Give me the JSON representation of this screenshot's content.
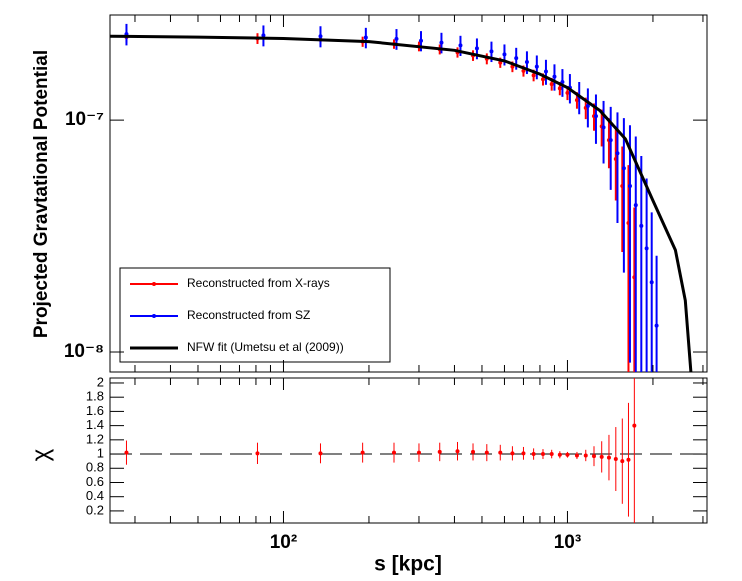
{
  "chart_data": [
    {
      "type": "errorbar",
      "ylabel": "Projected Gravtational Potential",
      "log_x": true,
      "log_y": true,
      "xlim": [
        24.5,
        3100
      ],
      "ylim": [
        8.2e-09,
        2.84e-07
      ],
      "yticks": [
        {
          "value": 1e-08,
          "label": "10⁻⁸"
        },
        {
          "value": 1e-07,
          "label": "10⁻⁷"
        }
      ],
      "legend": "bottom-left",
      "series": [
        {
          "name": "Reconstructed from X-rays",
          "color": "#ff0000",
          "x": [
            28,
            81,
            135,
            190,
            245,
            300,
            355,
            410,
            465,
            520,
            580,
            640,
            700,
            760,
            820,
            880,
            940,
            1000,
            1080,
            1160,
            1240,
            1320,
            1400,
            1480,
            1560,
            1640,
            1720
          ],
          "values": [
            2.28e-07,
            2.25e-07,
            2.22e-07,
            2.18e-07,
            2.13e-07,
            2.08e-07,
            2.02e-07,
            1.96e-07,
            1.9e-07,
            1.84e-07,
            1.77e-07,
            1.7e-07,
            1.63e-07,
            1.56e-07,
            1.5e-07,
            1.43e-07,
            1.37e-07,
            1.31e-07,
            1.22e-07,
            1.13e-07,
            1.04e-07,
            9.4e-08,
            8.2e-08,
            6.8e-08,
            5.2e-08,
            3.6e-08,
            2.1e-08
          ],
          "errors": [
            1.2e-08,
            1.2e-08,
            1.1e-08,
            1.1e-08,
            1e-08,
            1e-08,
            1e-08,
            1e-08,
            1e-08,
            1e-08,
            9e-09,
            9e-09,
            9e-09,
            9e-09,
            9e-09,
            9e-09,
            9e-09,
            9e-09,
            1e-08,
            1.2e-08,
            1.4e-08,
            1.7e-08,
            2e-08,
            2.3e-08,
            2.5e-08,
            2.8e-08,
            2.1e-08
          ]
        },
        {
          "name": "Reconstructed from SZ",
          "color": "#0000ff",
          "x": [
            28,
            85,
            135,
            195,
            250,
            305,
            360,
            420,
            480,
            540,
            600,
            660,
            720,
            780,
            840,
            900,
            960,
            1020,
            1100,
            1180,
            1260,
            1340,
            1420,
            1500,
            1580,
            1660,
            1740,
            1820,
            1900,
            1980,
            2060
          ],
          "values": [
            2.35e-07,
            2.32e-07,
            2.3e-07,
            2.27e-07,
            2.24e-07,
            2.2e-07,
            2.16e-07,
            2.1e-07,
            2.04e-07,
            1.98e-07,
            1.92e-07,
            1.85e-07,
            1.78e-07,
            1.7e-07,
            1.62e-07,
            1.54e-07,
            1.46e-07,
            1.38e-07,
            1.26e-07,
            1.15e-07,
            1.04e-07,
            9.3e-08,
            8.2e-08,
            7.2e-08,
            6.2e-08,
            5.2e-08,
            4.3e-08,
            3.5e-08,
            2.8e-08,
            2e-08,
            1.3e-08
          ],
          "errors": [
            2.5e-08,
            2.4e-08,
            2.4e-08,
            2.3e-08,
            2.3e-08,
            2.2e-08,
            2.2e-08,
            2.1e-08,
            2.1e-08,
            2e-08,
            2e-08,
            2e-08,
            2e-08,
            2e-08,
            2e-08,
            2e-08,
            2e-08,
            2e-08,
            2e-08,
            2.2e-08,
            2.5e-08,
            2.8e-08,
            3.2e-08,
            3.6e-08,
            4e-08,
            4.3e-08,
            4.2e-08,
            3.5e-08,
            2.8e-08,
            2e-08,
            1.3e-08
          ]
        },
        {
          "name": "NFW fit (Umetsu et al (2009))",
          "color": "#000000",
          "x": [
            24.5,
            50,
            100,
            200,
            400,
            600,
            800,
            1000,
            1300,
            1600,
            2000,
            2400,
            2600,
            2720
          ],
          "values": [
            2.3e-07,
            2.28e-07,
            2.25e-07,
            2.18e-07,
            2e-07,
            1.8e-07,
            1.58e-07,
            1.38e-07,
            1.1e-07,
            8.3e-08,
            4.5e-08,
            2.75e-08,
            1.67e-08,
            8.2e-09
          ]
        }
      ]
    },
    {
      "type": "errorbar",
      "ylabel": "χ",
      "xlabel": "s [kpc]",
      "log_x": true,
      "xlim": [
        24.5,
        3100
      ],
      "ylim": [
        0.03,
        2.07
      ],
      "xticks": [
        {
          "value": 100,
          "label": "10²"
        },
        {
          "value": 1000,
          "label": "10³"
        }
      ],
      "xminorticks": [
        30,
        40,
        50,
        60,
        70,
        80,
        90,
        200,
        300,
        400,
        500,
        600,
        700,
        800,
        900,
        2000,
        3000
      ],
      "yticks": [
        0.2,
        0.4,
        0.6,
        0.8,
        1,
        1.2,
        1.4,
        1.6,
        1.8,
        2
      ],
      "refline": 1,
      "color": "#ff0000",
      "x": [
        28,
        81,
        135,
        190,
        245,
        300,
        355,
        410,
        465,
        520,
        580,
        640,
        700,
        760,
        820,
        880,
        940,
        1000,
        1080,
        1160,
        1240,
        1320,
        1400,
        1480,
        1560,
        1640,
        1720
      ],
      "values": [
        1.02,
        1.01,
        1.01,
        1.02,
        1.02,
        1.02,
        1.03,
        1.04,
        1.03,
        1.02,
        1.02,
        1.01,
        1.01,
        1.0,
        1.0,
        1.0,
        0.99,
        0.99,
        0.98,
        0.98,
        0.97,
        0.96,
        0.95,
        0.93,
        0.9,
        0.92,
        1.4
      ],
      "errors": [
        0.17,
        0.15,
        0.14,
        0.14,
        0.14,
        0.13,
        0.13,
        0.13,
        0.12,
        0.12,
        0.11,
        0.1,
        0.09,
        0.08,
        0.07,
        0.06,
        0.05,
        0.04,
        0.05,
        0.08,
        0.14,
        0.22,
        0.32,
        0.45,
        0.6,
        0.8,
        1.4
      ]
    }
  ]
}
